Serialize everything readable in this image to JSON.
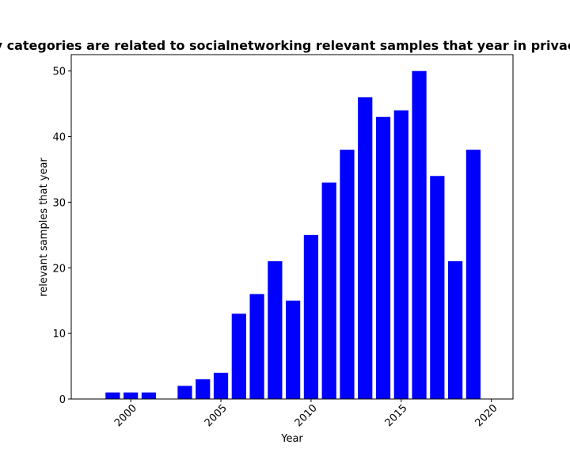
{
  "chart_data": {
    "type": "bar",
    "title": "How many categories are related to socialnetworking relevant samples that year in privacy policies",
    "xlabel": "Year",
    "ylabel": "relevant samples that year",
    "x": [
      1999,
      2000,
      2001,
      2003,
      2004,
      2005,
      2006,
      2007,
      2008,
      2009,
      2010,
      2011,
      2012,
      2013,
      2014,
      2015,
      2016,
      2017,
      2018,
      2019
    ],
    "values": [
      1,
      1,
      1,
      2,
      3,
      4,
      13,
      16,
      21,
      15,
      25,
      33,
      38,
      46,
      43,
      44,
      50,
      34,
      21,
      38
    ],
    "xlim": [
      1996.7,
      2021.2
    ],
    "ylim": [
      0,
      52.5
    ],
    "xticks": [
      "2000",
      "2005",
      "2010",
      "2015",
      "2020"
    ],
    "yticks": [
      "0",
      "10",
      "20",
      "30",
      "40",
      "50"
    ],
    "bar_color": "#0000ff",
    "grid": false,
    "legend": "none"
  }
}
